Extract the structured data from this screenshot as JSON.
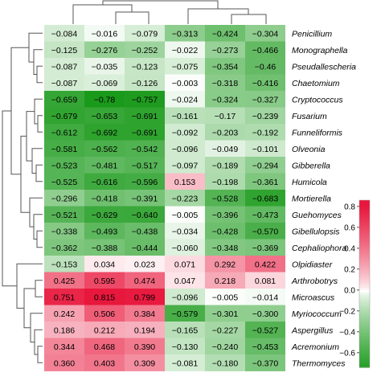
{
  "chart_data": {
    "type": "heatmap",
    "title": "",
    "xlabel": "",
    "ylabel": "",
    "columns": [
      "",
      "",
      "",
      "",
      "",
      ""
    ],
    "rows": [
      {
        "label": "Penicillium",
        "values": [
          -0.084,
          -0.016,
          -0.079,
          -0.313,
          -0.424,
          -0.304
        ]
      },
      {
        "label": "Monographella",
        "values": [
          -0.125,
          -0.276,
          -0.252,
          -0.022,
          -0.273,
          -0.466
        ]
      },
      {
        "label": "Pseudallescheria",
        "values": [
          -0.087,
          -0.035,
          -0.123,
          -0.075,
          -0.354,
          -0.46
        ]
      },
      {
        "label": "Chaetomium",
        "values": [
          -0.087,
          -0.069,
          -0.126,
          -0.003,
          -0.318,
          -0.416
        ]
      },
      {
        "label": "Cryptococcus",
        "values": [
          -0.659,
          -0.78,
          -0.757,
          -0.024,
          -0.324,
          -0.327
        ]
      },
      {
        "label": "Fusarium",
        "values": [
          -0.679,
          -0.653,
          -0.691,
          -0.161,
          -0.17,
          -0.239
        ]
      },
      {
        "label": "Funneliformis",
        "values": [
          -0.612,
          -0.692,
          -0.691,
          -0.092,
          -0.203,
          -0.192
        ]
      },
      {
        "label": "Olveonia",
        "values": [
          -0.581,
          -0.562,
          -0.542,
          -0.096,
          -0.049,
          -0.101
        ]
      },
      {
        "label": "Gibberella",
        "values": [
          -0.523,
          -0.481,
          -0.517,
          -0.097,
          -0.189,
          -0.294
        ]
      },
      {
        "label": "Humicola",
        "values": [
          -0.525,
          -0.616,
          -0.596,
          0.153,
          -0.198,
          -0.361
        ]
      },
      {
        "label": "Mortierella",
        "values": [
          -0.296,
          -0.418,
          -0.391,
          -0.223,
          -0.528,
          -0.683
        ]
      },
      {
        "label": "Guehomyces",
        "values": [
          -0.521,
          -0.629,
          -0.64,
          -0.005,
          -0.396,
          -0.473
        ]
      },
      {
        "label": "Gibellulopsis",
        "values": [
          -0.338,
          -0.493,
          -0.438,
          -0.034,
          -0.428,
          -0.57
        ]
      },
      {
        "label": "Cephaliophora",
        "values": [
          -0.362,
          -0.388,
          -0.444,
          -0.06,
          -0.348,
          -0.369
        ]
      },
      {
        "label": "Olpidiaster",
        "values": [
          -0.153,
          0.034,
          0.023,
          0.071,
          0.292,
          0.422
        ]
      },
      {
        "label": "Arthrobotrys",
        "values": [
          0.425,
          0.595,
          0.474,
          0.047,
          0.218,
          0.081
        ]
      },
      {
        "label": "Microascus",
        "values": [
          0.751,
          0.815,
          0.799,
          -0.096,
          -0.005,
          -0.014
        ]
      },
      {
        "label": "Myriococcum",
        "values": [
          0.242,
          0.506,
          0.384,
          -0.579,
          -0.301,
          -0.3
        ]
      },
      {
        "label": "Aspergillus",
        "values": [
          0.186,
          0.212,
          0.194,
          -0.165,
          -0.227,
          -0.527
        ]
      },
      {
        "label": "Acremonium",
        "values": [
          0.344,
          0.468,
          0.39,
          -0.13,
          -0.24,
          -0.453
        ]
      },
      {
        "label": "Thermomyces",
        "values": [
          0.36,
          0.403,
          0.309,
          -0.081,
          -0.18,
          -0.37
        ]
      }
    ],
    "value_labels": [
      [
        "−0.084",
        "−0.016",
        "−0.079",
        "−0.313",
        "−0.424",
        "−0.304"
      ],
      [
        "−0.125",
        "−0.276",
        "−0.252",
        "−0.022",
        "−0.273",
        "−0.466"
      ],
      [
        "−0.087",
        "−0.035",
        "−0.123",
        "−0.075",
        "−0.354",
        "−0.46"
      ],
      [
        "−0.087",
        "−0.069",
        "−0.126",
        "−0.003",
        "−0.318",
        "−0.416"
      ],
      [
        "−0.659",
        "−0.78",
        "−0.757",
        "−0.024",
        "−0.324",
        "−0.327"
      ],
      [
        "−0.679",
        "−0.653",
        "−0.691",
        "−0.161",
        "−0.17",
        "−0.239"
      ],
      [
        "−0.612",
        "−0.692",
        "−0.691",
        "−0.092",
        "−0.203",
        "−0.192"
      ],
      [
        "−0.581",
        "−0.562",
        "−0.542",
        "−0.096",
        "−0.049",
        "−0.101"
      ],
      [
        "−0.523",
        "−0.481",
        "−0.517",
        "−0.097",
        "−0.189",
        "−0.294"
      ],
      [
        "−0.525",
        "−0.616",
        "−0.596",
        "0.153",
        "−0.198",
        "−0.361"
      ],
      [
        "−0.296",
        "−0.418",
        "−0.391",
        "−0.223",
        "−0.528",
        "−0.683"
      ],
      [
        "−0.521",
        "−0.629",
        "−0.640",
        "−0.005",
        "−0.396",
        "−0.473"
      ],
      [
        "−0.338",
        "−0.493",
        "−0.438",
        "−0.034",
        "−0.428",
        "−0.570"
      ],
      [
        "−0.362",
        "−0.388",
        "−0.444",
        "−0.060",
        "−0.348",
        "−0.369"
      ],
      [
        "−0.153",
        "0.034",
        "0.023",
        "0.071",
        "0.292",
        "0.422"
      ],
      [
        "0.425",
        "0.595",
        "0.474",
        "0.047",
        "0.218",
        "0.081"
      ],
      [
        "0.751",
        "0.815",
        "0.799",
        "−0.096",
        "−0.005",
        "−0.014"
      ],
      [
        "0.242",
        "0.506",
        "0.384",
        "−0.579",
        "−0.301",
        "−0.300"
      ],
      [
        "0.186",
        "0.212",
        "0.194",
        "−0.165",
        "−0.227",
        "−0.527"
      ],
      [
        "0.344",
        "0.468",
        "0.390",
        "−0.130",
        "−0.240",
        "−0.453"
      ],
      [
        "0.360",
        "0.403",
        "0.309",
        "−0.081",
        "−0.180",
        "−0.370"
      ]
    ],
    "color_scale": {
      "min": -0.78,
      "max": 0.815,
      "colors": {
        "negative": "#1a9a1a",
        "zero": "#ffffff",
        "positive": "#e8173c"
      },
      "ticks": [
        0.8,
        0.6,
        0.4,
        0.2,
        0.0,
        -0.2,
        -0.4,
        -0.6
      ],
      "tick_labels": [
        "0.8",
        "0.6",
        "0.4",
        "0.2",
        "0.0",
        "−0.2",
        "−0.4",
        "−0.6"
      ]
    },
    "legend_position": "right",
    "row_dendrogram": true,
    "column_dendrogram": true
  }
}
